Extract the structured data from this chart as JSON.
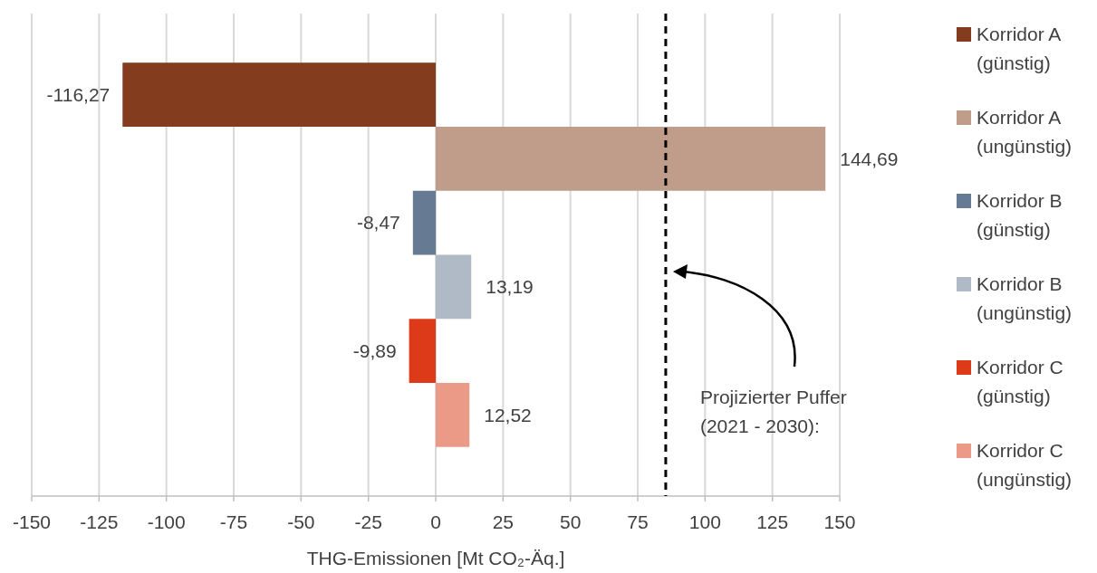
{
  "chart_data": {
    "type": "bar",
    "orientation": "horizontal",
    "xlabel": "THG-Emissionen [Mt CO₂-Äq.]",
    "categories": [
      null
    ],
    "series": [
      {
        "name": "Korridor A (günstig)",
        "color": "#843c1e",
        "values": [
          -116.27
        ],
        "value_labels": [
          "-116,27"
        ]
      },
      {
        "name": "Korridor A (ungünstig)",
        "color": "#bf9d8a",
        "values": [
          144.69
        ],
        "value_labels": [
          "144,69"
        ]
      },
      {
        "name": "Korridor B (günstig)",
        "color": "#667a93",
        "values": [
          -8.47
        ],
        "value_labels": [
          "-8,47"
        ]
      },
      {
        "name": "Korridor B (ungünstig)",
        "color": "#b0b9c6",
        "values": [
          13.19
        ],
        "value_labels": [
          "13,19"
        ]
      },
      {
        "name": "Korridor C (günstig)",
        "color": "#dc3a19",
        "values": [
          -9.89
        ],
        "value_labels": [
          "-9,89"
        ]
      },
      {
        "name": "Korridor C (ungünstig)",
        "color": "#ec9a88",
        "values": [
          12.52
        ],
        "value_labels": [
          "12,52"
        ]
      }
    ],
    "xlim": [
      -150,
      150
    ],
    "xticks": [
      -150,
      -125,
      -100,
      -75,
      -50,
      -25,
      0,
      25,
      50,
      75,
      100,
      125,
      150
    ],
    "grid": "x",
    "legend": "right",
    "ref_lines": [
      {
        "axis": "x",
        "value": 85.4,
        "label": "Projizierter Puffer (2021 - 2030):",
        "line_style": "dashed",
        "color": "#000000"
      }
    ]
  }
}
